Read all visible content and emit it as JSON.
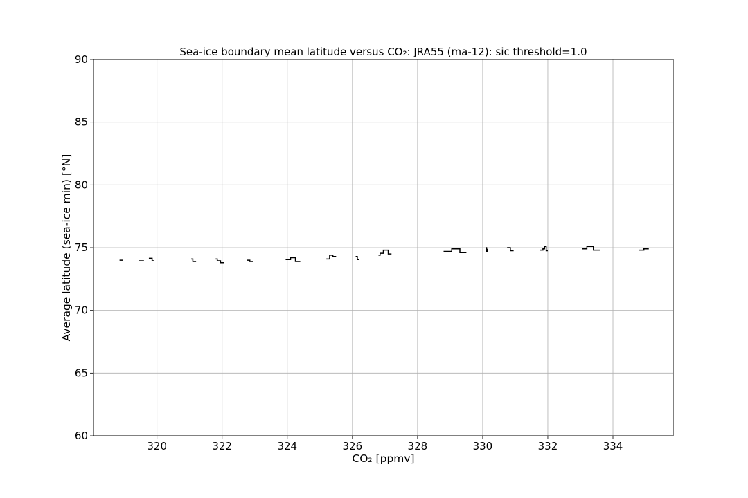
{
  "chart_data": {
    "type": "line",
    "title": "Sea-ice boundary mean latitude versus CO₂: JRA55 (ma-12): sic threshold=1.0",
    "xlabel": "CO₂ [ppmv]",
    "ylabel": "Average latitude (sea-ice min) [°N]",
    "xlim": [
      318.05,
      335.85
    ],
    "ylim": [
      60,
      90
    ],
    "xticks": [
      320,
      322,
      324,
      326,
      328,
      330,
      332,
      334
    ],
    "yticks": [
      60,
      65,
      70,
      75,
      80,
      85,
      90
    ],
    "grid": true,
    "step": "post",
    "line_color": "#000000",
    "segments": [
      {
        "x": [
          318.85,
          318.95
        ],
        "y": [
          74.0,
          74.0
        ]
      },
      {
        "x": [
          319.45,
          319.6
        ],
        "y": [
          73.95,
          73.95
        ]
      },
      {
        "x": [
          319.75,
          319.85,
          319.9
        ],
        "y": [
          74.15,
          73.95,
          73.95
        ]
      },
      {
        "x": [
          321.05,
          321.1,
          321.2
        ],
        "y": [
          74.1,
          73.9,
          73.9
        ]
      },
      {
        "x": [
          321.8,
          321.85,
          321.95,
          322.05
        ],
        "y": [
          74.1,
          73.95,
          73.8,
          73.8
        ]
      },
      {
        "x": [
          322.75,
          322.85,
          322.95
        ],
        "y": [
          74.0,
          73.9,
          73.9
        ]
      },
      {
        "x": [
          323.95,
          324.1,
          324.25,
          324.4
        ],
        "y": [
          74.05,
          74.2,
          73.9,
          73.9
        ]
      },
      {
        "x": [
          325.2,
          325.3,
          325.4,
          325.5
        ],
        "y": [
          74.1,
          74.4,
          74.3,
          74.3
        ]
      },
      {
        "x": [
          326.1,
          326.15,
          326.2
        ],
        "y": [
          74.3,
          74.05,
          74.05
        ]
      },
      {
        "x": [
          326.8,
          326.85,
          326.95,
          327.1,
          327.2
        ],
        "y": [
          74.4,
          74.55,
          74.8,
          74.5,
          74.5
        ]
      },
      {
        "x": [
          328.8,
          329.05,
          329.3,
          329.5
        ],
        "y": [
          74.7,
          74.9,
          74.6,
          74.6
        ]
      },
      {
        "x": [
          330.1,
          330.12,
          330.15
        ],
        "y": [
          75.0,
          74.7,
          74.9
        ]
      },
      {
        "x": [
          330.75,
          330.85,
          330.95
        ],
        "y": [
          75.0,
          74.75,
          74.75
        ]
      },
      {
        "x": [
          331.75,
          331.85,
          331.9,
          331.95,
          332.0
        ],
        "y": [
          74.8,
          74.9,
          75.1,
          74.75,
          74.75
        ]
      },
      {
        "x": [
          333.05,
          333.2,
          333.4,
          333.6
        ],
        "y": [
          74.9,
          75.1,
          74.8,
          74.8
        ]
      },
      {
        "x": [
          334.8,
          334.95,
          335.1
        ],
        "y": [
          74.8,
          74.9,
          74.9
        ]
      }
    ]
  }
}
